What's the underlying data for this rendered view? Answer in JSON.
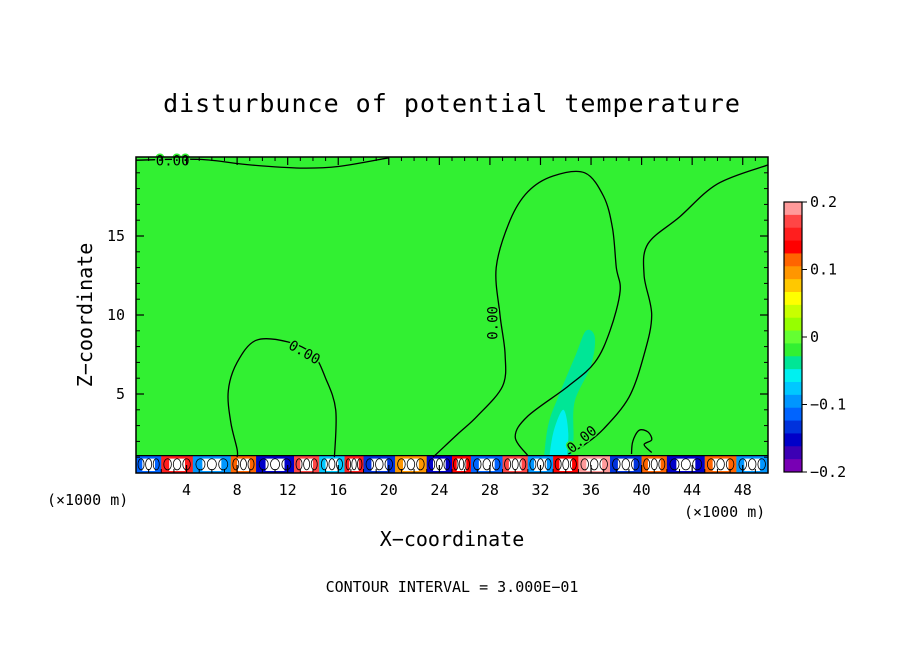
{
  "chart_data": {
    "type": "heatmap",
    "title": "disturbunce of potential temperature",
    "xlabel": "X−coordinate",
    "ylabel": "Z−coordinate",
    "x_unit_left": "(×1000 m)",
    "x_unit_right": "(×1000 m)",
    "footnote": "CONTOUR INTERVAL = 3.000E−01",
    "xlim": [
      0,
      50
    ],
    "ylim": [
      0,
      20
    ],
    "x_ticks": [
      4,
      8,
      12,
      16,
      20,
      24,
      28,
      32,
      36,
      40,
      44,
      48
    ],
    "x_tick_labels": [
      "4",
      "8",
      "12",
      "16",
      "20",
      "24",
      "28",
      "32",
      "36",
      "40",
      "44",
      "48"
    ],
    "y_ticks": [
      5,
      10,
      15
    ],
    "y_tick_labels": [
      "5",
      "10",
      "15"
    ],
    "colorbar": {
      "range": [
        -0.2,
        0.2
      ],
      "tick_values": [
        0.2,
        0.1,
        0,
        -0.1,
        -0.2
      ],
      "tick_labels": [
        "0.2",
        "0.1",
        "0",
        "−0.1",
        "−0.2"
      ],
      "colors": [
        "#ff9a9a",
        "#ff4646",
        "#ff1e1e",
        "#ff0000",
        "#ff6400",
        "#ff9600",
        "#ffc800",
        "#ffff00",
        "#c8ff00",
        "#96ff00",
        "#64ff32",
        "#32f032",
        "#00e696",
        "#00f0f0",
        "#00c8ff",
        "#0096ff",
        "#0064ff",
        "#0032dc",
        "#0000c8",
        "#3c00b4",
        "#7800b4"
      ]
    },
    "background_color": "#32f032",
    "contour_label": "0.00",
    "contours": [
      {
        "name": "top-contour",
        "points": [
          [
            0,
            19.8
          ],
          [
            5,
            19.85
          ],
          [
            9,
            19.5
          ],
          [
            13,
            19.3
          ],
          [
            16,
            19.4
          ],
          [
            20,
            19.95
          ]
        ]
      },
      {
        "name": "left-bubble",
        "points": [
          [
            15.7,
            1
          ],
          [
            15.8,
            4
          ],
          [
            15,
            6
          ],
          [
            14,
            7.5
          ],
          [
            12,
            8.3
          ],
          [
            9.5,
            8.4
          ],
          [
            8,
            7
          ],
          [
            7.3,
            5.2
          ],
          [
            7.5,
            3.2
          ],
          [
            8,
            1.5
          ],
          [
            8,
            1
          ]
        ]
      },
      {
        "name": "plume",
        "points": [
          [
            23.5,
            1
          ],
          [
            25.5,
            2.5
          ],
          [
            27,
            3.6
          ],
          [
            29,
            5.5
          ],
          [
            29.2,
            7.5
          ],
          [
            28.8,
            10
          ],
          [
            28.5,
            13
          ],
          [
            29.6,
            16
          ],
          [
            31,
            17.8
          ],
          [
            33,
            18.8
          ],
          [
            35.5,
            19
          ],
          [
            37,
            17.5
          ],
          [
            37.7,
            15.5
          ],
          [
            38,
            13
          ],
          [
            38.3,
            11.5
          ],
          [
            37.5,
            9
          ],
          [
            36.3,
            7
          ],
          [
            34.2,
            5.5
          ],
          [
            31,
            3.6
          ],
          [
            30,
            2.3
          ],
          [
            31,
            1.1
          ]
        ]
      },
      {
        "name": "right-envelope",
        "points": [
          [
            34.2,
            1.2
          ],
          [
            35.5,
            1.8
          ],
          [
            37,
            2.8
          ],
          [
            39,
            4.8
          ],
          [
            40.2,
            7.5
          ],
          [
            40.8,
            10
          ],
          [
            40.2,
            12.5
          ],
          [
            40.5,
            14.5
          ],
          [
            43,
            16.2
          ],
          [
            46,
            18.3
          ],
          [
            50,
            19.5
          ]
        ]
      },
      {
        "name": "small-loop",
        "points": [
          [
            39.2,
            1.2
          ],
          [
            39.3,
            2
          ],
          [
            39.8,
            2.7
          ],
          [
            40.5,
            2.6
          ],
          [
            40.8,
            2.1
          ],
          [
            40.2,
            1.8
          ],
          [
            40.8,
            1.3
          ]
        ]
      }
    ],
    "contour_labels": [
      {
        "text": "0.00",
        "x": 2.9,
        "y": 19.7,
        "angle": 0
      },
      {
        "text": "0.00",
        "x": 13.3,
        "y": 7.6,
        "angle": 30
      },
      {
        "text": "0.00",
        "x": 28.3,
        "y": 9.5,
        "angle": -90
      },
      {
        "text": "0.00",
        "x": 35.3,
        "y": 2.1,
        "angle": -40
      }
    ],
    "anomaly_patches": [
      {
        "name": "cool-patch-left",
        "points": [
          [
            9.8,
            0.3
          ],
          [
            10.2,
            2.2
          ],
          [
            11,
            2.6
          ],
          [
            11.8,
            1.6
          ],
          [
            12,
            0.3
          ]
        ],
        "value": -0.02
      },
      {
        "name": "cool-patch-plume",
        "points": [
          [
            32.2,
            0.3
          ],
          [
            32.6,
            3
          ],
          [
            33.5,
            5
          ],
          [
            34.8,
            7.5
          ],
          [
            35.6,
            9
          ],
          [
            36.3,
            8.6
          ],
          [
            36,
            6.8
          ],
          [
            34.7,
            4.5
          ],
          [
            34.6,
            2
          ],
          [
            34.2,
            0.3
          ]
        ],
        "value": -0.03
      },
      {
        "name": "cool-patch-plume-core",
        "points": [
          [
            32.6,
            0.3
          ],
          [
            33,
            2.5
          ],
          [
            33.8,
            4
          ],
          [
            34.2,
            2.5
          ],
          [
            34,
            0.3
          ]
        ],
        "value": -0.05
      }
    ],
    "surface_layer": {
      "z_top": 1.1,
      "segments": [
        {
          "x": [
            0,
            2
          ],
          "value": -0.12
        },
        {
          "x": [
            2,
            4.5
          ],
          "value": 0.15
        },
        {
          "x": [
            4.5,
            7.5
          ],
          "value": -0.1
        },
        {
          "x": [
            7.5,
            9.5
          ],
          "value": 0.12
        },
        {
          "x": [
            9.5,
            12.5
          ],
          "value": -0.15
        },
        {
          "x": [
            12.5,
            14.5
          ],
          "value": 0.18
        },
        {
          "x": [
            14.5,
            16.5
          ],
          "value": -0.08
        },
        {
          "x": [
            16.5,
            18
          ],
          "value": 0.16
        },
        {
          "x": [
            18,
            20.5
          ],
          "value": -0.14
        },
        {
          "x": [
            20.5,
            23
          ],
          "value": 0.1
        },
        {
          "x": [
            23,
            25
          ],
          "value": -0.16
        },
        {
          "x": [
            25,
            26.5
          ],
          "value": 0.13
        },
        {
          "x": [
            26.5,
            29
          ],
          "value": -0.12
        },
        {
          "x": [
            29,
            31
          ],
          "value": 0.17
        },
        {
          "x": [
            31,
            33
          ],
          "value": -0.1
        },
        {
          "x": [
            33,
            35
          ],
          "value": 0.14
        },
        {
          "x": [
            35,
            37.5
          ],
          "value": 0.19
        },
        {
          "x": [
            37.5,
            40
          ],
          "value": -0.13
        },
        {
          "x": [
            40,
            42
          ],
          "value": 0.11
        },
        {
          "x": [
            42,
            45
          ],
          "value": -0.16
        },
        {
          "x": [
            45,
            47.5
          ],
          "value": 0.12
        },
        {
          "x": [
            47.5,
            50
          ],
          "value": -0.1
        }
      ]
    }
  }
}
